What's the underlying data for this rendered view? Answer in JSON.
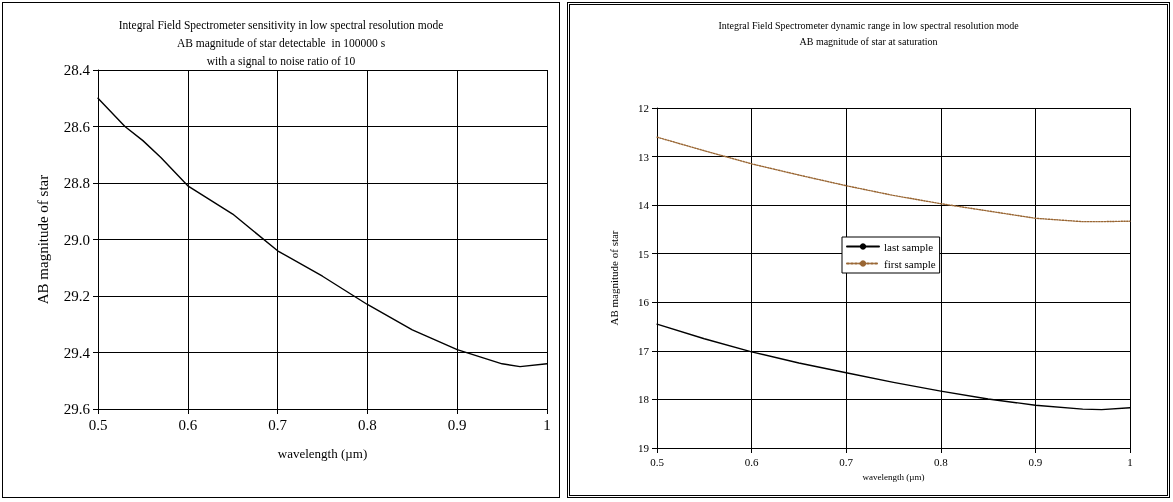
{
  "chart_data": [
    {
      "type": "line",
      "title": "Integral Field Spectrometer sensitivity in low spectral resolution mode\nAB magnitude of star detectable  in 100000 s\nwith a signal to noise ratio of 10",
      "xlabel": "wavelength (µm)",
      "ylabel": "AB magnitude of star",
      "x": [
        0.5,
        0.53,
        0.55,
        0.57,
        0.6,
        0.65,
        0.7,
        0.75,
        0.8,
        0.85,
        0.9,
        0.95,
        0.97,
        1.0
      ],
      "series": [
        {
          "color": "#000000",
          "values": [
            28.5,
            28.6,
            28.65,
            28.71,
            28.81,
            28.91,
            29.04,
            29.13,
            29.23,
            29.32,
            29.39,
            29.44,
            29.45,
            29.44
          ]
        }
      ],
      "xlim": [
        0.5,
        1
      ],
      "xticks": [
        0.5,
        0.6,
        0.7,
        0.8,
        0.9,
        1
      ],
      "ylim": [
        29.6,
        28.4
      ],
      "yticks": [
        {
          "value": 28.4,
          "label": "28.4"
        },
        {
          "value": 28.6,
          "label": "28.6"
        },
        {
          "value": 28.8,
          "label": "28.8"
        },
        {
          "value": 29.0,
          "label": "29.0"
        },
        {
          "value": 29.2,
          "label": "29.2"
        },
        {
          "value": 29.4,
          "label": "29.4"
        },
        {
          "value": 29.6,
          "label": "29.6"
        }
      ],
      "grid": true,
      "line_style": "solid",
      "marker": "none"
    },
    {
      "type": "line",
      "title": "Integral Field Spectrometer dynamic range in low spectral resolution mode\nAB magnitude of star at saturation",
      "xlabel": "wavelength (µm)",
      "ylabel": "AB magnitude of star",
      "x": [
        0.5,
        0.55,
        0.6,
        0.65,
        0.7,
        0.75,
        0.8,
        0.85,
        0.9,
        0.95,
        0.97,
        1.0
      ],
      "series": [
        {
          "name": "last sample",
          "color": "#000000",
          "line_style": "solid",
          "values": [
            16.45,
            16.75,
            17.02,
            17.25,
            17.45,
            17.65,
            17.83,
            17.99,
            18.12,
            18.2,
            18.21,
            18.17
          ]
        },
        {
          "name": "first sample",
          "color": "#996633",
          "line_style": "dotted",
          "values": [
            12.6,
            12.88,
            13.15,
            13.38,
            13.6,
            13.8,
            13.97,
            14.12,
            14.27,
            14.34,
            14.34,
            14.33
          ]
        }
      ],
      "xlim": [
        0.5,
        1
      ],
      "xticks": [
        0.5,
        0.6,
        0.7,
        0.8,
        0.9,
        1
      ],
      "ylim": [
        19,
        12
      ],
      "yticks": [
        12,
        13,
        14,
        15,
        16,
        17,
        18,
        19
      ],
      "grid": true,
      "legend": "center",
      "marker": "none"
    }
  ]
}
